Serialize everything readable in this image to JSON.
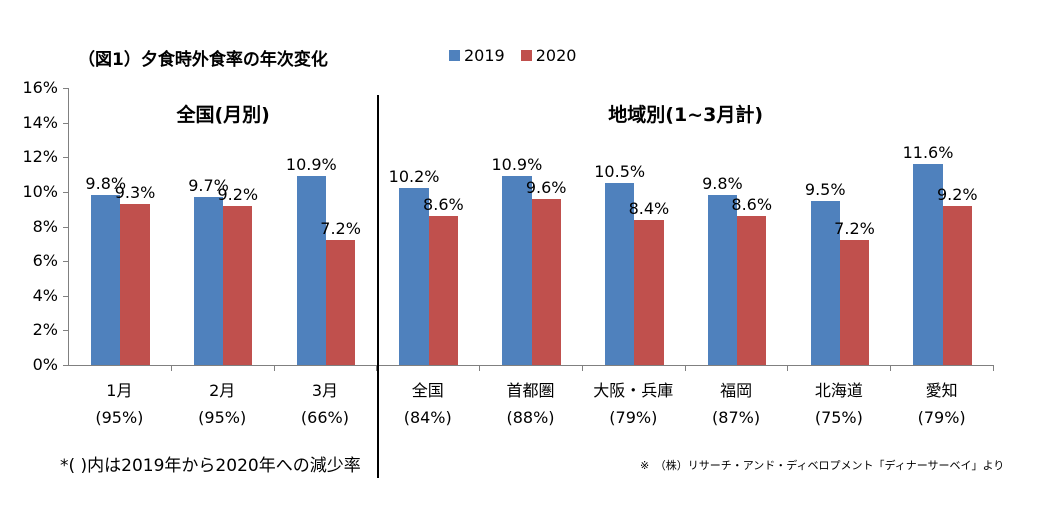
{
  "chart_data": {
    "type": "bar",
    "title": "（図1）夕食時外食率の年次変化",
    "ylim": [
      0,
      16
    ],
    "y_tick_labels": [
      "0%",
      "2%",
      "4%",
      "6%",
      "8%",
      "10%",
      "12%",
      "14%",
      "16%"
    ],
    "grid": false,
    "legend_position": "top-center",
    "axis_color": "#808080",
    "divider_color": "#000000",
    "series": [
      {
        "name": "2019",
        "color": "#4F81BD"
      },
      {
        "name": "2020",
        "color": "#C0504D"
      }
    ],
    "sections": [
      {
        "header": "全国(月別)",
        "groups": [
          {
            "label": "1月",
            "sublabel": "(95%)",
            "values": [
              9.8,
              9.3
            ]
          },
          {
            "label": "2月",
            "sublabel": "(95%)",
            "values": [
              9.7,
              9.2
            ]
          },
          {
            "label": "3月",
            "sublabel": "(66%)",
            "values": [
              10.9,
              7.2
            ]
          }
        ]
      },
      {
        "header": "地域別(1~3月計)",
        "groups": [
          {
            "label": "全国",
            "sublabel": "(84%)",
            "values": [
              10.2,
              8.6
            ]
          },
          {
            "label": "首都圏",
            "sublabel": "(88%)",
            "values": [
              10.9,
              9.6
            ]
          },
          {
            "label": "大阪・兵庫",
            "sublabel": "(79%)",
            "values": [
              10.5,
              8.4
            ]
          },
          {
            "label": "福岡",
            "sublabel": "(87%)",
            "values": [
              9.8,
              8.6
            ]
          },
          {
            "label": "北海道",
            "sublabel": "(75%)",
            "values": [
              9.5,
              7.2
            ]
          },
          {
            "label": "愛知",
            "sublabel": "(79%)",
            "values": [
              11.6,
              9.2
            ]
          }
        ]
      }
    ],
    "footnote_left": "*( )内は2019年から2020年への減少率",
    "footnote_right": "※　（株）リサーチ・アンド・ディベロプメント「ディナーサーベイ」より"
  }
}
